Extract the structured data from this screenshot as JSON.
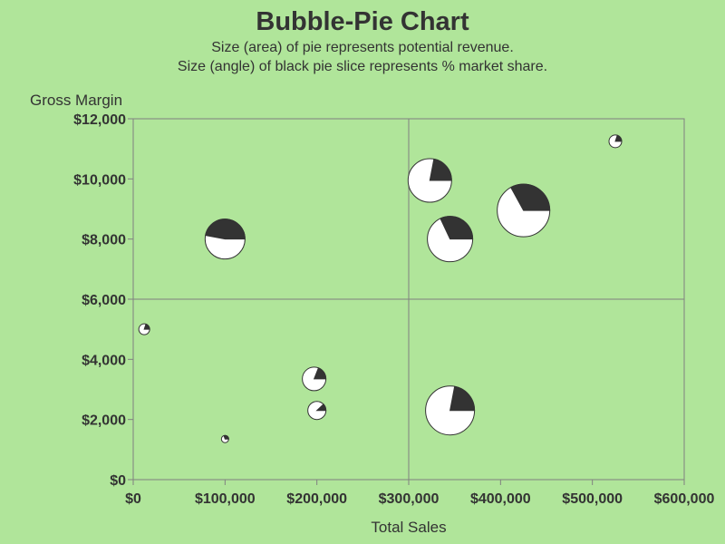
{
  "chart_data": {
    "type": "scatter",
    "title": "Bubble-Pie Chart",
    "subtitle": [
      "Size (area) of pie represents potential revenue.",
      "Size (angle) of black pie slice represents % market share."
    ],
    "xlabel": "Total Sales",
    "ylabel": "Gross Margin",
    "xlim": [
      0,
      600000
    ],
    "ylim": [
      0,
      12000
    ],
    "xticks": [
      0,
      100000,
      200000,
      300000,
      400000,
      500000,
      600000
    ],
    "yticks": [
      0,
      2000,
      4000,
      6000,
      8000,
      10000,
      12000
    ],
    "xtick_labels": [
      "$0",
      "$100,000",
      "$200,000",
      "$300,000",
      "$400,000",
      "$500,000",
      "$600,000"
    ],
    "ytick_labels": [
      "$0",
      "$2,000",
      "$4,000",
      "$6,000",
      "$8,000",
      "$10,000",
      "$12,000"
    ],
    "reference_lines": {
      "x": 300000,
      "y": 6000
    },
    "grid": false,
    "colors": {
      "background": "#b0e59a",
      "slice": "#333333",
      "pie": "#ffffff",
      "frame": "#808080"
    },
    "points": [
      {
        "x": 12000,
        "y": 5000,
        "radius": 6,
        "share": 0.2
      },
      {
        "x": 100000,
        "y": 1350,
        "radius": 4,
        "share": 0.3
      },
      {
        "x": 100000,
        "y": 8000,
        "radius": 22,
        "share": 0.47
      },
      {
        "x": 197000,
        "y": 3350,
        "radius": 13,
        "share": 0.19
      },
      {
        "x": 200000,
        "y": 2300,
        "radius": 10,
        "share": 0.12
      },
      {
        "x": 323000,
        "y": 9950,
        "radius": 24,
        "share": 0.22
      },
      {
        "x": 345000,
        "y": 8000,
        "radius": 25,
        "share": 0.32
      },
      {
        "x": 345000,
        "y": 2300,
        "radius": 27,
        "share": 0.22
      },
      {
        "x": 425000,
        "y": 8950,
        "radius": 29,
        "share": 0.33
      },
      {
        "x": 525000,
        "y": 11250,
        "radius": 7,
        "share": 0.2
      }
    ]
  }
}
